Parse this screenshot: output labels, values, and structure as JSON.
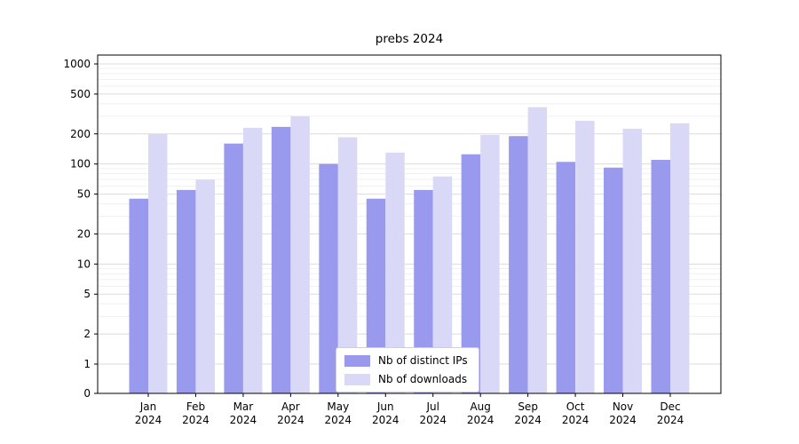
{
  "chart_data": {
    "type": "bar",
    "title": "prebs 2024",
    "yscale": "symlog",
    "grid": true,
    "legend_position": "lower center",
    "ylim": [
      0,
      1100
    ],
    "yticks": [
      0,
      1,
      2,
      5,
      10,
      20,
      50,
      100,
      200,
      500,
      1000
    ],
    "minor_yticks": [
      3,
      4,
      6,
      7,
      8,
      9,
      30,
      40,
      60,
      70,
      80,
      90,
      300,
      400,
      600,
      700,
      800,
      900
    ],
    "categories": [
      "Jan",
      "Feb",
      "Mar",
      "Apr",
      "May",
      "Jun",
      "Jul",
      "Aug",
      "Sep",
      "Oct",
      "Nov",
      "Dec"
    ],
    "year": "2024",
    "series": [
      {
        "name": "Nb of distinct IPs",
        "color": "#9999ee",
        "values": [
          45,
          55,
          160,
          235,
          100,
          45,
          55,
          125,
          190,
          105,
          92,
          110
        ]
      },
      {
        "name": "Nb of downloads",
        "color": "#d9d9f7",
        "values": [
          200,
          70,
          230,
          300,
          185,
          130,
          75,
          195,
          370,
          270,
          225,
          255
        ]
      }
    ]
  }
}
